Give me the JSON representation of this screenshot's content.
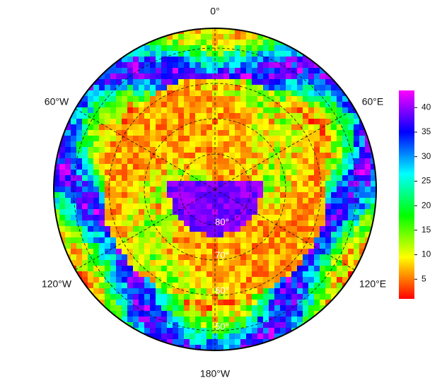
{
  "map": {
    "longitude_labels": [
      "0°",
      "60°E",
      "120°E",
      "180°W",
      "120°W",
      "60°W"
    ],
    "latitude_labels": [
      "80°",
      "70°",
      "60°",
      "50°"
    ]
  },
  "colorbar": {
    "lim": [
      1,
      43.5
    ],
    "ticks": [
      5,
      10,
      15,
      20,
      25,
      30,
      35,
      40
    ]
  }
}
